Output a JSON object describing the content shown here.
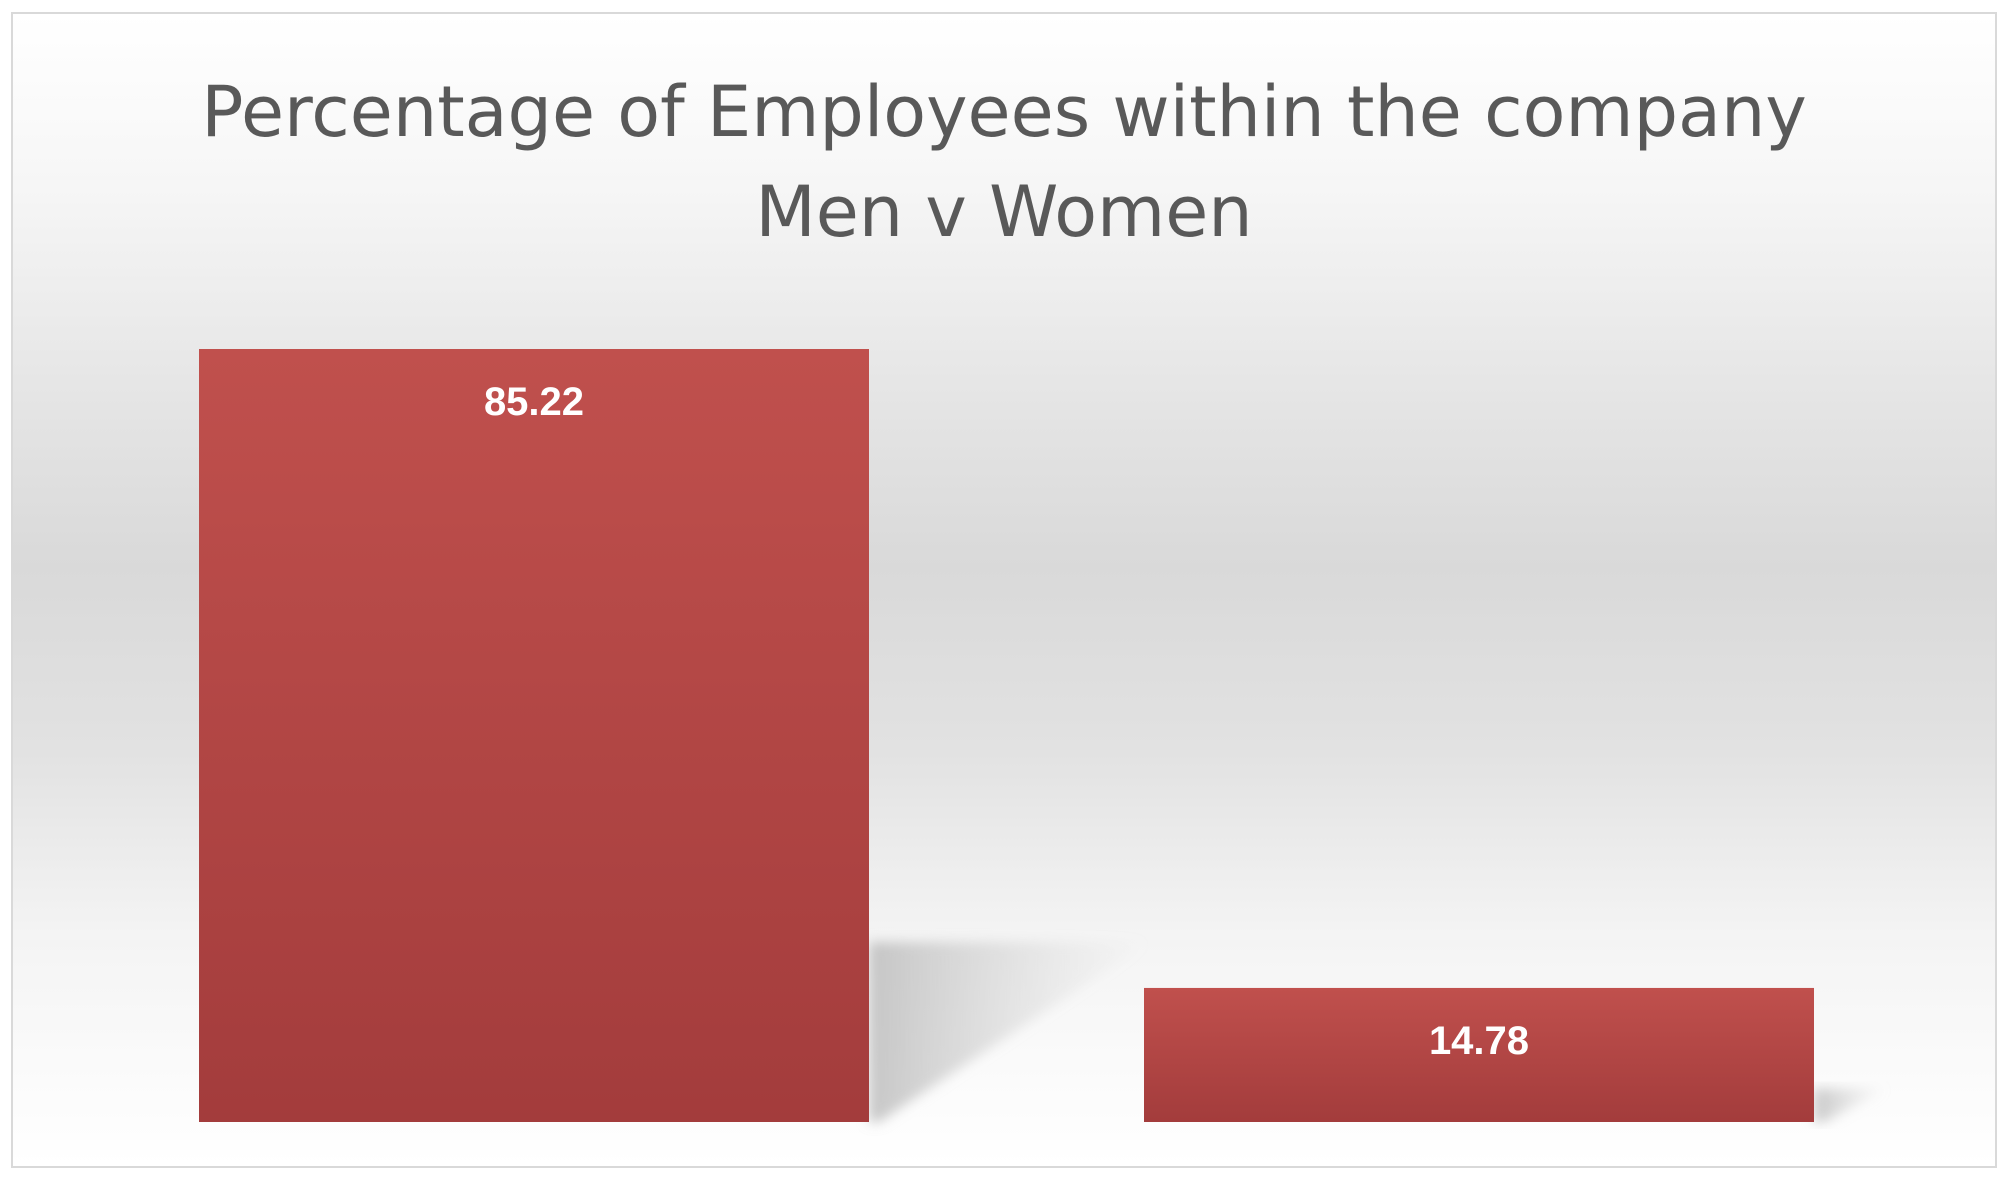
{
  "chart_data": {
    "type": "bar",
    "title": [
      "Percentage of Employees within the company",
      "Men v Women"
    ],
    "categories": [
      "",
      ""
    ],
    "values": [
      85.22,
      14.78
    ],
    "data_labels": [
      "85.22",
      "14.78"
    ],
    "ylim": [
      0,
      85.22
    ],
    "grid": false,
    "legend": "none",
    "bar_color": "#b54a4a",
    "bar_color_dark": "#a33c3c",
    "bar_color_light": "#c0504d"
  }
}
